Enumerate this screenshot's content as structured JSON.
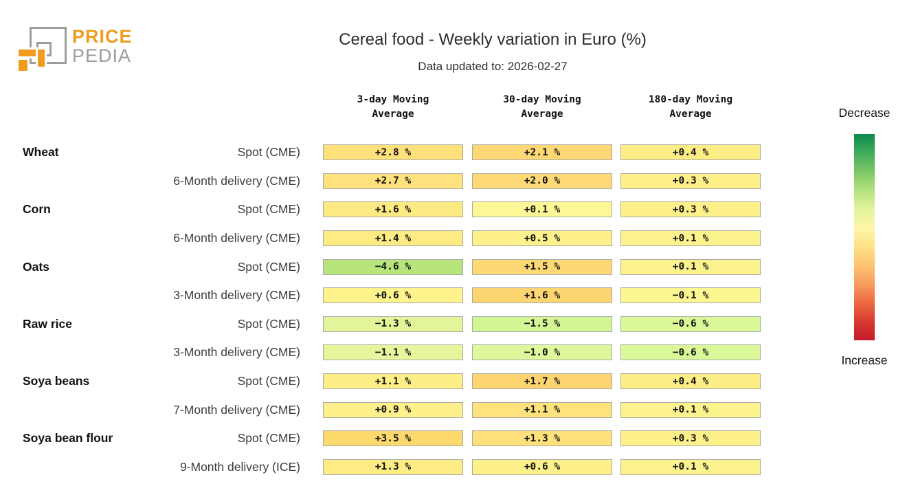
{
  "logo": {
    "line1": "PRICE",
    "line2": "PEDIA",
    "orange": "#ef9c1f",
    "gray": "#9c9c9c"
  },
  "header": {
    "title": "Cereal food - Weekly variation in Euro (%)",
    "subtitle": "Data updated to: 2026-02-27"
  },
  "columns": [
    "3-day Moving\nAverage",
    "30-day Moving\nAverage",
    "180-day Moving\nAverage"
  ],
  "rows": [
    {
      "group": "Wheat",
      "label": "Spot (CME)",
      "values": [
        {
          "text": "+2.8 %",
          "color": "#ffe17c"
        },
        {
          "text": "+2.1 %",
          "color": "#fed875"
        },
        {
          "text": "+0.4 %",
          "color": "#fcee84"
        }
      ]
    },
    {
      "group": "",
      "label": "6-Month delivery (CME)",
      "values": [
        {
          "text": "+2.7 %",
          "color": "#ffe17d"
        },
        {
          "text": "+2.0 %",
          "color": "#feda76"
        },
        {
          "text": "+0.3 %",
          "color": "#fdf089"
        }
      ]
    },
    {
      "group": "Corn",
      "label": "Spot (CME)",
      "values": [
        {
          "text": "+1.6 %",
          "color": "#feea82"
        },
        {
          "text": "+0.1 %",
          "color": "#fdf795"
        },
        {
          "text": "+0.3 %",
          "color": "#fdf089"
        }
      ]
    },
    {
      "group": "",
      "label": "6-Month delivery (CME)",
      "values": [
        {
          "text": "+1.4 %",
          "color": "#feeb83"
        },
        {
          "text": "+0.5 %",
          "color": "#fef18b"
        },
        {
          "text": "+0.1 %",
          "color": "#fdf38e"
        }
      ]
    },
    {
      "group": "Oats",
      "label": "Spot (CME)",
      "values": [
        {
          "text": "−4.6 %",
          "color": "#b7e57b"
        },
        {
          "text": "+1.5 %",
          "color": "#fed873"
        },
        {
          "text": "+0.1 %",
          "color": "#fdf38e"
        }
      ]
    },
    {
      "group": "",
      "label": "3-Month delivery (CME)",
      "values": [
        {
          "text": "+0.6 %",
          "color": "#fef38d"
        },
        {
          "text": "+1.6 %",
          "color": "#fdd671"
        },
        {
          "text": "−0.1 %",
          "color": "#fdf792"
        }
      ]
    },
    {
      "group": "Raw rice",
      "label": "Spot (CME)",
      "values": [
        {
          "text": "−1.3 %",
          "color": "#e3f59b"
        },
        {
          "text": "−1.5 %",
          "color": "#d4f593"
        },
        {
          "text": "−0.6 %",
          "color": "#daf898"
        }
      ]
    },
    {
      "group": "",
      "label": "3-Month delivery (CME)",
      "values": [
        {
          "text": "−1.1 %",
          "color": "#e7f69d"
        },
        {
          "text": "−1.0 %",
          "color": "#def89b"
        },
        {
          "text": "−0.6 %",
          "color": "#daf898"
        }
      ]
    },
    {
      "group": "Soya beans",
      "label": "Spot (CME)",
      "values": [
        {
          "text": "+1.1 %",
          "color": "#feee87"
        },
        {
          "text": "+1.7 %",
          "color": "#fdd470"
        },
        {
          "text": "+0.4 %",
          "color": "#fcee84"
        }
      ]
    },
    {
      "group": "",
      "label": "7-Month delivery (CME)",
      "values": [
        {
          "text": "+0.9 %",
          "color": "#fef08a"
        },
        {
          "text": "+1.1 %",
          "color": "#fee37d"
        },
        {
          "text": "+0.1 %",
          "color": "#fdf38e"
        }
      ]
    },
    {
      "group": "Soya bean flour",
      "label": "Spot (CME)",
      "values": [
        {
          "text": "+3.5 %",
          "color": "#fdd96e"
        },
        {
          "text": "+1.3 %",
          "color": "#fee17b"
        },
        {
          "text": "+0.3 %",
          "color": "#fdf089"
        }
      ]
    },
    {
      "group": "",
      "label": "9-Month delivery (ICE)",
      "values": [
        {
          "text": "+1.3 %",
          "color": "#feec84"
        },
        {
          "text": "+0.6 %",
          "color": "#fef18b"
        },
        {
          "text": "+0.1 %",
          "color": "#fdf38e"
        }
      ]
    }
  ],
  "legend": {
    "top_label": "Decrease",
    "bottom_label": "Increase",
    "gradient": [
      "#0e8a4f",
      "#3fac5a",
      "#7cc665",
      "#b5e17f",
      "#e3f49c",
      "#fdf6a8",
      "#fee288",
      "#fdc374",
      "#f89c5c",
      "#ec6a44",
      "#d8392f",
      "#c41a2b"
    ]
  },
  "chart_data": {
    "type": "heatmap",
    "title": "Cereal food - Weekly variation in Euro (%)",
    "subtitle": "Data updated to: 2026-02-27",
    "columns": [
      "3-day Moving Average",
      "30-day Moving Average",
      "180-day Moving Average"
    ],
    "row_labels": [
      "Wheat – Spot (CME)",
      "Wheat – 6-Month delivery (CME)",
      "Corn – Spot (CME)",
      "Corn – 6-Month delivery (CME)",
      "Oats – Spot (CME)",
      "Oats – 3-Month delivery (CME)",
      "Raw rice – Spot (CME)",
      "Raw rice – 3-Month delivery (CME)",
      "Soya beans – Spot (CME)",
      "Soya beans – 7-Month delivery (CME)",
      "Soya bean flour – Spot (CME)",
      "Soya bean flour – 9-Month delivery (ICE)"
    ],
    "values_pct": [
      [
        2.8,
        2.1,
        0.4
      ],
      [
        2.7,
        2.0,
        0.3
      ],
      [
        1.6,
        0.1,
        0.3
      ],
      [
        1.4,
        0.5,
        0.1
      ],
      [
        -4.6,
        1.5,
        0.1
      ],
      [
        0.6,
        1.6,
        -0.1
      ],
      [
        -1.3,
        -1.5,
        -0.6
      ],
      [
        -1.1,
        -1.0,
        -0.6
      ],
      [
        1.1,
        1.7,
        0.4
      ],
      [
        0.9,
        1.1,
        0.1
      ],
      [
        3.5,
        1.3,
        0.3
      ],
      [
        1.3,
        0.6,
        0.1
      ]
    ],
    "legend": {
      "green_end": "Decrease",
      "red_end": "Increase"
    }
  }
}
